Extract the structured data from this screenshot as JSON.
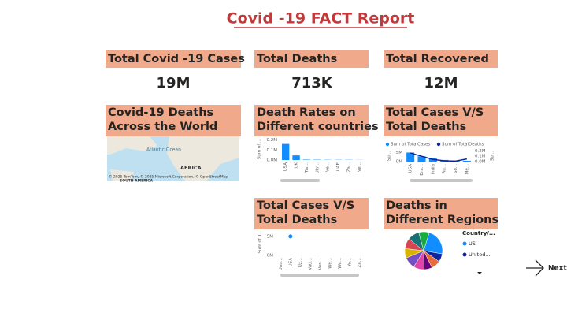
{
  "header": {
    "title": "Covid -19 FACT Report"
  },
  "cards": [
    {
      "title": "Total Covid -19 Cases",
      "value": "19M"
    },
    {
      "title": "Total Deaths",
      "value": "713K"
    },
    {
      "title": "Total Recovered",
      "value": "12M"
    }
  ],
  "map": {
    "title": "Covid-19 Deaths Across the World",
    "labels": [
      "Atlantic Ocean",
      "AFRICA",
      "SOUTH AMERICA"
    ],
    "credit": "© 2025 TomTom, © 2025 Microsoft Corporation, © OpenStreetMap"
  },
  "death_rates": {
    "type": "bar",
    "title": "Death Rates on Different countries",
    "y_label": "Sum of ...",
    "categories": [
      "USA",
      "UK",
      "Tur...",
      "Ukr...",
      "Ve...",
      "UAE",
      "Za...",
      "Ve..."
    ],
    "values": [
      0.16,
      0.046,
      0.004,
      0.003,
      0.002,
      0.002,
      0.002,
      0.001
    ],
    "color": "#118dff",
    "ylim": [
      0,
      0.22
    ],
    "yticks": [
      {
        "value": 0.2,
        "label": "0.2M"
      },
      {
        "value": 0.1,
        "label": "0.1M"
      },
      {
        "value": 0,
        "label": "0.0M"
      }
    ]
  },
  "cases_deaths_combo": {
    "type": "combo",
    "title": "Total Cases V/S Total Deaths",
    "y_label": "Su...",
    "y2_label": "Su...",
    "categories": [
      "USA",
      "Bra...",
      "India",
      "Ru...",
      "So...",
      "Me..."
    ],
    "series": [
      {
        "name": "Sum of TotalCases",
        "color": "#118dff",
        "values": [
          5.0,
          2.9,
          2.0,
          0.9,
          0.5,
          0.45
        ]
      },
      {
        "name": "Sum of TotalDeaths",
        "color": "#12239e",
        "axis": "y2",
        "values": [
          0.16,
          0.1,
          0.04,
          0.015,
          0.009,
          0.05
        ]
      }
    ],
    "ylim": [
      0,
      6.5
    ],
    "yticks": [
      {
        "value": 5,
        "label": "5M"
      },
      {
        "value": 0,
        "label": "0M"
      }
    ],
    "y2lim": [
      0,
      0.22
    ],
    "y2ticks": [
      {
        "value": 0.2,
        "label": "0.2M"
      },
      {
        "value": 0.1,
        "label": "0.1M"
      },
      {
        "value": 0,
        "label": "0.0M"
      }
    ]
  },
  "cases_deaths_scatter": {
    "type": "scatter",
    "title": "Total Cases V/S Total Deaths",
    "y_label": "Sum of T...",
    "categories": [
      "Unu...",
      "USA",
      "Uz...",
      "Vati...",
      "Ven...",
      "We...",
      "We...",
      "Ye...",
      "Za..."
    ],
    "values": [
      null,
      5,
      null,
      null,
      null,
      null,
      null,
      null,
      null
    ],
    "color": "#118dff",
    "ylim": [
      0,
      6
    ],
    "yticks": [
      {
        "value": 5,
        "label": "5M"
      },
      {
        "value": 0,
        "label": "0M"
      }
    ]
  },
  "regions_pie": {
    "type": "pie",
    "title": "Deaths in Different Regions",
    "legend_title": "Country/...",
    "categories": [
      "US",
      "United...",
      null,
      null,
      null,
      null,
      null,
      null,
      null,
      null
    ],
    "values": [
      23,
      7,
      8,
      7,
      9,
      10,
      8,
      9,
      10,
      9
    ],
    "colors": [
      "#118dff",
      "#12239e",
      "#e66c37",
      "#6b007b",
      "#e044a7",
      "#744ec2",
      "#d9b300",
      "#d64550",
      "#197278",
      "#1aab40"
    ]
  },
  "next": {
    "label": "Next"
  }
}
